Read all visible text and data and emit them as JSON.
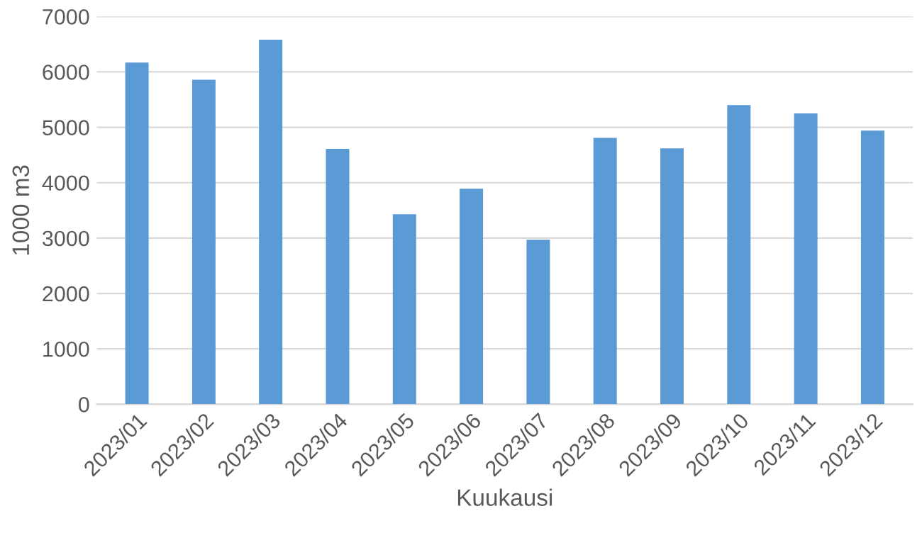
{
  "chart_data": {
    "type": "bar",
    "xlabel": "Kuukausi",
    "ylabel": "1000 m3",
    "categories": [
      "2023/01",
      "2023/02",
      "2023/03",
      "2023/04",
      "2023/05",
      "2023/06",
      "2023/07",
      "2023/08",
      "2023/09",
      "2023/10",
      "2023/11",
      "2023/12"
    ],
    "values": [
      6170,
      5860,
      6580,
      4610,
      3430,
      3890,
      2970,
      4810,
      4620,
      5400,
      5250,
      4940
    ],
    "color": "#5b9bd5",
    "ylim": [
      0,
      7000
    ],
    "yticks": [
      0,
      1000,
      2000,
      3000,
      4000,
      5000,
      6000,
      7000
    ],
    "grid": "y"
  }
}
